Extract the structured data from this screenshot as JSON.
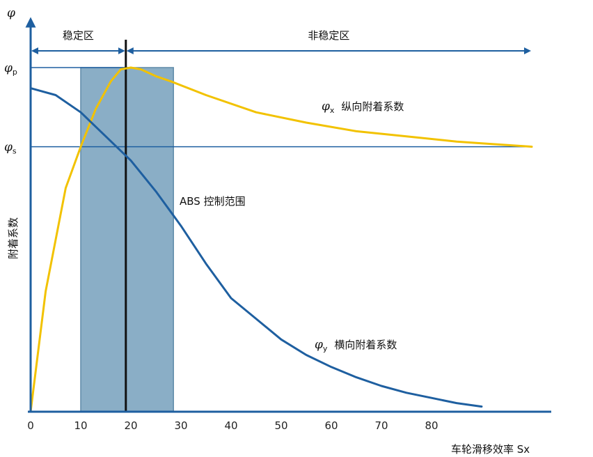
{
  "chart_data": {
    "type": "line",
    "title": "",
    "xlabel": "车轮滑移效率 Sx",
    "ylabel": "附着系数",
    "y_axis_symbol": "φ",
    "xlim": [
      0,
      100
    ],
    "ylim": [
      0,
      1.06
    ],
    "x_ticks": [
      "0",
      "10",
      "20",
      "30",
      "40",
      "50",
      "60",
      "70",
      "80"
    ],
    "y_tick_labels": [
      {
        "symbol": "φ",
        "subscript": "p",
        "value": 1.0
      },
      {
        "symbol": "φ",
        "subscript": "s",
        "value": 0.77
      }
    ],
    "series": [
      {
        "name": "φx 纵向附着系数",
        "label_symbol": "φ",
        "label_subscript": "x",
        "label_text": "纵向附着系数",
        "color": "#f2c200",
        "x": [
          0,
          3,
          7,
          10,
          13,
          16,
          18,
          20,
          22,
          25,
          28,
          35,
          45,
          55,
          65,
          75,
          85,
          90,
          100
        ],
        "y": [
          0,
          0.35,
          0.65,
          0.77,
          0.88,
          0.96,
          0.995,
          1.0,
          0.995,
          0.975,
          0.96,
          0.92,
          0.87,
          0.84,
          0.815,
          0.8,
          0.785,
          0.78,
          0.77
        ]
      },
      {
        "name": "φy 横向附着系数",
        "label_symbol": "φ",
        "label_subscript": "y",
        "label_text": "横向附着系数",
        "color": "#1e5fa0",
        "x": [
          0,
          5,
          10,
          15,
          20,
          25,
          30,
          35,
          40,
          45,
          50,
          55,
          60,
          65,
          70,
          75,
          80,
          85,
          90
        ],
        "y": [
          0.94,
          0.92,
          0.87,
          0.8,
          0.73,
          0.64,
          0.54,
          0.43,
          0.33,
          0.27,
          0.21,
          0.165,
          0.13,
          0.1,
          0.075,
          0.055,
          0.04,
          0.025,
          0.015
        ]
      }
    ],
    "reference_lines": [
      {
        "orientation": "horizontal",
        "value": 1.0,
        "x_to": 20,
        "color": "#1e5fa0"
      },
      {
        "orientation": "horizontal",
        "value": 0.77,
        "x_to": 100,
        "color": "#1e5fa0"
      },
      {
        "orientation": "vertical",
        "value": 19,
        "color": "#111111"
      }
    ],
    "shaded_region": {
      "x_from": 10,
      "x_to": 28.5,
      "label": "ABS 控制范围",
      "color": "#8aaec6"
    },
    "regions": [
      {
        "label": "稳定区",
        "x_from": 0,
        "x_to": 19
      },
      {
        "label": "非稳定区",
        "x_from": 19,
        "x_to": 100
      }
    ],
    "grid": false
  }
}
